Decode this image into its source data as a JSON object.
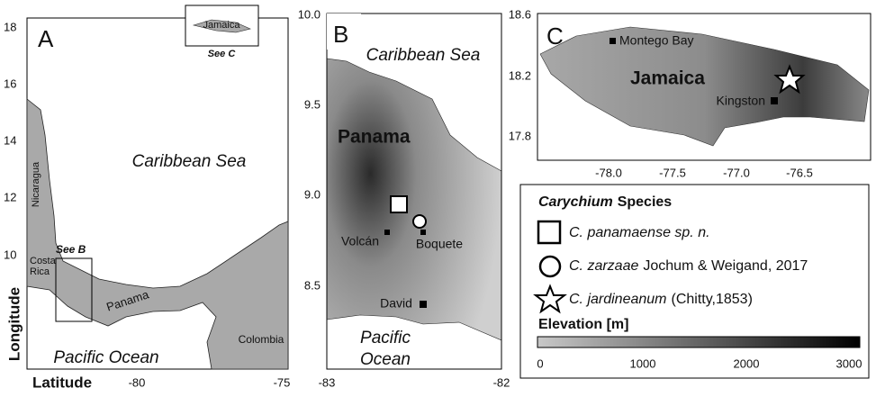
{
  "panel_a": {
    "label": "A",
    "inset_label": "Jamaica",
    "inset_caption": "See C",
    "box_caption": "See B",
    "sea": "Caribbean Sea",
    "ocean": "Pacific Ocean",
    "nicaragua": "Nicaragua",
    "costa_rica": [
      "Costa",
      "Rica"
    ],
    "panama": "Panama",
    "colombia": "Colombia",
    "yticks": [
      "18",
      "16",
      "14",
      "12",
      "10"
    ],
    "xticks": [
      "-80",
      "-75"
    ],
    "y_axis_label": "Longitude",
    "x_axis_label": "Latitude"
  },
  "panel_b": {
    "label": "B",
    "sea": "Caribbean Sea",
    "country": "Panama",
    "ocean": [
      "Pacific",
      "Ocean"
    ],
    "towns": [
      "Volcán",
      "Boquete",
      "David"
    ],
    "yticks": [
      "10.0",
      "9.5",
      "9.0",
      "8.5"
    ],
    "xticks": [
      "-83",
      "-82"
    ]
  },
  "panel_c": {
    "label": "C",
    "island": "Jamaica",
    "towns": [
      "Montego Bay",
      "Kingston"
    ],
    "yticks": [
      "18.6",
      "18.2",
      "17.8"
    ],
    "xticks": [
      "-78.0",
      "-77.5",
      "-77.0",
      "-76.5"
    ]
  },
  "legend": {
    "title_genus": "Carychium",
    "title_rest": "Species",
    "species": [
      {
        "name": "C. panamaense sp. n."
      },
      {
        "name": "C. zarzaae",
        "authority": "Jochum & Weigand, 2017"
      },
      {
        "name": "C. jardineanum",
        "authority": "(Chitty,1853)"
      }
    ],
    "elevation_title": "Elevation [m]",
    "elevation_ticks": [
      "0",
      "1000",
      "2000",
      "3000"
    ]
  }
}
